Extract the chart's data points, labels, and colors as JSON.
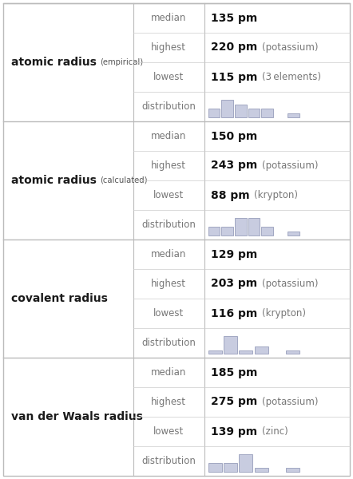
{
  "sections": [
    {
      "title": "atomic radius",
      "title_suffix": "(empirical)",
      "rows": [
        {
          "label": "median",
          "value": "135 pm",
          "extra": ""
        },
        {
          "label": "highest",
          "value": "220 pm",
          "extra": "(potassium)"
        },
        {
          "label": "lowest",
          "value": "115 pm",
          "extra": "(3 elements)"
        },
        {
          "label": "distribution",
          "value": "",
          "extra": "",
          "hist": [
            2,
            4,
            3,
            2,
            2,
            0,
            1
          ]
        }
      ]
    },
    {
      "title": "atomic radius",
      "title_suffix": "(calculated)",
      "rows": [
        {
          "label": "median",
          "value": "150 pm",
          "extra": ""
        },
        {
          "label": "highest",
          "value": "243 pm",
          "extra": "(potassium)"
        },
        {
          "label": "lowest",
          "value": "88 pm",
          "extra": "(krypton)"
        },
        {
          "label": "distribution",
          "value": "",
          "extra": "",
          "hist": [
            2,
            2,
            4,
            4,
            2,
            0,
            1
          ]
        }
      ]
    },
    {
      "title": "covalent radius",
      "title_suffix": "",
      "rows": [
        {
          "label": "median",
          "value": "129 pm",
          "extra": ""
        },
        {
          "label": "highest",
          "value": "203 pm",
          "extra": "(potassium)"
        },
        {
          "label": "lowest",
          "value": "116 pm",
          "extra": "(krypton)"
        },
        {
          "label": "distribution",
          "value": "",
          "extra": "",
          "hist": [
            1,
            5,
            1,
            2,
            0,
            1
          ]
        }
      ]
    },
    {
      "title": "van der Waals radius",
      "title_suffix": "",
      "rows": [
        {
          "label": "median",
          "value": "185 pm",
          "extra": ""
        },
        {
          "label": "highest",
          "value": "275 pm",
          "extra": "(potassium)"
        },
        {
          "label": "lowest",
          "value": "139 pm",
          "extra": "(zinc)"
        },
        {
          "label": "distribution",
          "value": "",
          "extra": "",
          "hist": [
            2,
            2,
            4,
            1,
            0,
            1
          ]
        }
      ]
    }
  ],
  "bg_color": "#ffffff",
  "border_color": "#bbbbbb",
  "row_border_color": "#cccccc",
  "hist_bar_color": "#c8cce0",
  "hist_bar_edge": "#8890b0"
}
